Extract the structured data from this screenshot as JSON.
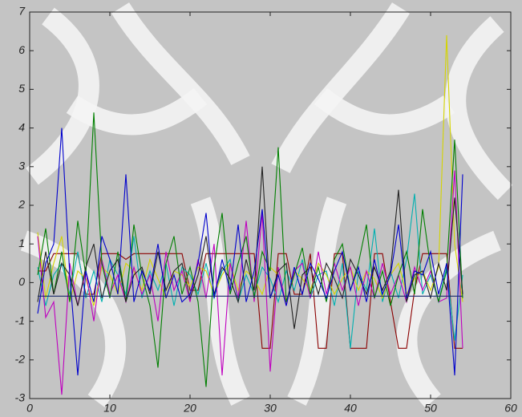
{
  "chart_data": {
    "type": "line",
    "x": [
      1,
      2,
      3,
      4,
      5,
      6,
      7,
      8,
      9,
      10,
      11,
      12,
      13,
      14,
      15,
      16,
      17,
      18,
      19,
      20,
      21,
      22,
      23,
      24,
      25,
      26,
      27,
      28,
      29,
      30,
      31,
      32,
      33,
      34,
      35,
      36,
      37,
      38,
      39,
      40,
      41,
      42,
      43,
      44,
      45,
      46,
      47,
      48,
      49,
      50,
      51,
      52,
      53,
      54
    ],
    "series": [
      {
        "color": "#8b0000",
        "values": [
          0.3,
          0.3,
          0.75,
          0.75,
          0.75,
          0.75,
          -0.3,
          -0.3,
          0.75,
          0.75,
          0.75,
          0.6,
          0.75,
          0.75,
          0.75,
          0.75,
          0.75,
          0.75,
          0.75,
          -0.2,
          -0.2,
          0.75,
          0.75,
          0.75,
          0.75,
          0.75,
          0.75,
          0.75,
          -1.7,
          -1.7,
          0.75,
          0.75,
          -0.3,
          -0.3,
          0.75,
          -1.7,
          -1.7,
          0.75,
          0.75,
          -1.7,
          -1.7,
          -1.7,
          0.75,
          0.75,
          -0.5,
          -1.7,
          -1.7,
          -0.2,
          0.75,
          0.75,
          0.75,
          0.75,
          -1.7,
          -1.7
        ]
      },
      {
        "color": "#00b0b0",
        "values": [
          0.4,
          -0.6,
          0.2,
          0.5,
          -0.3,
          0.8,
          -0.4,
          0.3,
          -0.5,
          0.6,
          0.2,
          -0.3,
          1.2,
          -0.4,
          0.3,
          -0.2,
          0.5,
          -0.6,
          0.4,
          0.2,
          -0.3,
          0.5,
          -0.4,
          0.3,
          0.6,
          -0.5,
          0.2,
          -0.3,
          0.4,
          0.1,
          -0.5,
          0.3,
          -0.2,
          0.6,
          -0.4,
          0.2,
          0.3,
          -0.6,
          0.5,
          -1.7,
          0.3,
          -0.2,
          1.4,
          -0.5,
          0.3,
          -0.4,
          0.6,
          2.3,
          -0.3,
          0.2,
          -0.5,
          0.4,
          -1.5,
          0.2
        ]
      },
      {
        "color": "#d4d400",
        "values": [
          1.3,
          -0.4,
          0.5,
          1.2,
          -0.5,
          0.3,
          0.1,
          -0.6,
          0.4,
          0.2,
          -0.3,
          0.5,
          0.3,
          -0.2,
          0.6,
          0.1,
          -0.4,
          0.3,
          0.2,
          -0.1,
          0.4,
          0.3,
          -0.3,
          0.2,
          0.5,
          -0.2,
          0.3,
          0.1,
          -0.3,
          0.4,
          0.2,
          -0.5,
          0.3,
          0.1,
          -0.2,
          0.5,
          0.2,
          -0.3,
          0.1,
          0.4,
          -0.2,
          0.3,
          0.1,
          -0.4,
          0.2,
          0.5,
          -0.3,
          0.1,
          0.3,
          -0.2,
          0.4,
          6.4,
          1.0,
          -0.5
        ]
      },
      {
        "color": "#bf00bf",
        "values": [
          1.2,
          -0.9,
          -0.5,
          -2.9,
          0.5,
          -0.6,
          0.3,
          -1.0,
          0.6,
          -0.3,
          0.2,
          -0.5,
          0.4,
          -0.3,
          0.2,
          -1.0,
          0.8,
          -0.2,
          0.3,
          -0.5,
          0.6,
          -0.4,
          1.0,
          -2.4,
          0.5,
          -0.4,
          1.6,
          -0.5,
          1.8,
          -2.3,
          0.4,
          -0.6,
          0.3,
          0.5,
          -0.4,
          0.8,
          -0.3,
          0.5,
          -0.2,
          0.4,
          -0.6,
          0.3,
          -0.4,
          0.5,
          -0.3,
          0.2,
          -0.5,
          0.4,
          -0.2,
          0.3,
          -0.5,
          -0.4,
          2.9,
          -1.7
        ]
      },
      {
        "color": "#007f00",
        "values": [
          0.2,
          1.4,
          -0.3,
          0.8,
          -0.5,
          1.6,
          0.2,
          4.4,
          0.5,
          -0.4,
          0.8,
          -0.5,
          1.5,
          0.2,
          -0.6,
          -2.2,
          0.5,
          1.2,
          -0.3,
          0.4,
          -0.5,
          -2.7,
          0.4,
          1.8,
          -0.3,
          0.5,
          1.2,
          -0.4,
          0.8,
          0.3,
          3.5,
          -0.5,
          0.2,
          0.9,
          -0.3,
          0.4,
          -0.5,
          0.6,
          1.0,
          -0.2,
          0.5,
          1.5,
          -0.4,
          0.3,
          -0.6,
          0.2,
          0.8,
          -0.3,
          1.9,
          0.4,
          -0.5,
          0.3,
          3.7,
          -0.4
        ]
      },
      {
        "color": "#222222",
        "values": [
          -0.5,
          0.8,
          -0.3,
          0.5,
          0.2,
          -0.6,
          0.4,
          1.0,
          -0.4,
          0.3,
          0.6,
          -0.5,
          0.2,
          0.4,
          -0.3,
          0.8,
          -0.2,
          0.3,
          0.5,
          -0.4,
          0.2,
          1.2,
          -0.3,
          0.4,
          0.1,
          -0.5,
          0.6,
          -0.2,
          3.0,
          -0.4,
          0.3,
          0.5,
          -1.2,
          0.2,
          0.4,
          -0.3,
          0.5,
          0.1,
          -0.4,
          0.6,
          0.2,
          -0.3,
          0.4,
          -0.2,
          0.3,
          2.4,
          -0.5,
          0.2,
          0.3,
          -0.4,
          0.5,
          -0.2,
          2.2,
          -0.3
        ]
      },
      {
        "color": "#0000cc",
        "values": [
          -0.8,
          0.5,
          1.0,
          4.0,
          0.2,
          -2.4,
          0.3,
          -0.5,
          1.2,
          0.6,
          -0.3,
          2.8,
          -0.5,
          0.3,
          -0.2,
          1.0,
          -0.4,
          0.2,
          -0.5,
          -0.3,
          0.5,
          1.8,
          -0.4,
          0.6,
          -0.2,
          1.5,
          -0.5,
          0.3,
          1.9,
          -0.4,
          0.2,
          -0.6,
          0.4,
          -0.3,
          0.5,
          0.1,
          -0.4,
          0.3,
          0.8,
          -0.2,
          0.4,
          -0.5,
          0.6,
          -0.3,
          0.2,
          1.5,
          -0.4,
          0.3,
          0.2,
          0.8,
          -0.3,
          0.5,
          -2.4,
          2.8
        ]
      },
      {
        "color": "#1a2a6c",
        "values": [
          -0.35,
          -0.35,
          -0.35,
          -0.35,
          -0.35,
          -0.35,
          -0.35,
          -0.35,
          -0.35,
          -0.35,
          -0.35,
          -0.35,
          -0.35,
          -0.35,
          -0.35,
          -0.35,
          -0.35,
          -0.35,
          -0.35,
          -0.35,
          -0.35,
          -0.35,
          -0.35,
          -0.35,
          -0.35,
          -0.35,
          -0.35,
          -0.35,
          -0.35,
          -0.35,
          -0.35,
          -0.35,
          -0.35,
          -0.35,
          -0.35,
          -0.35,
          -0.35,
          -0.35,
          -0.35,
          -0.35,
          -0.35,
          -0.35,
          -0.35,
          -0.35,
          -0.35,
          -0.35,
          -0.35,
          -0.35,
          -0.35,
          -0.35,
          -0.35,
          -0.35,
          -0.35,
          -0.35
        ]
      }
    ],
    "xlim": [
      0,
      60
    ],
    "xticks": [
      0,
      10,
      20,
      30,
      40,
      50,
      60
    ],
    "ylim": [
      -3,
      7
    ],
    "yticks": [
      -3,
      -2,
      -1,
      0,
      1,
      2,
      3,
      4,
      5,
      6,
      7
    ],
    "grid": false
  }
}
